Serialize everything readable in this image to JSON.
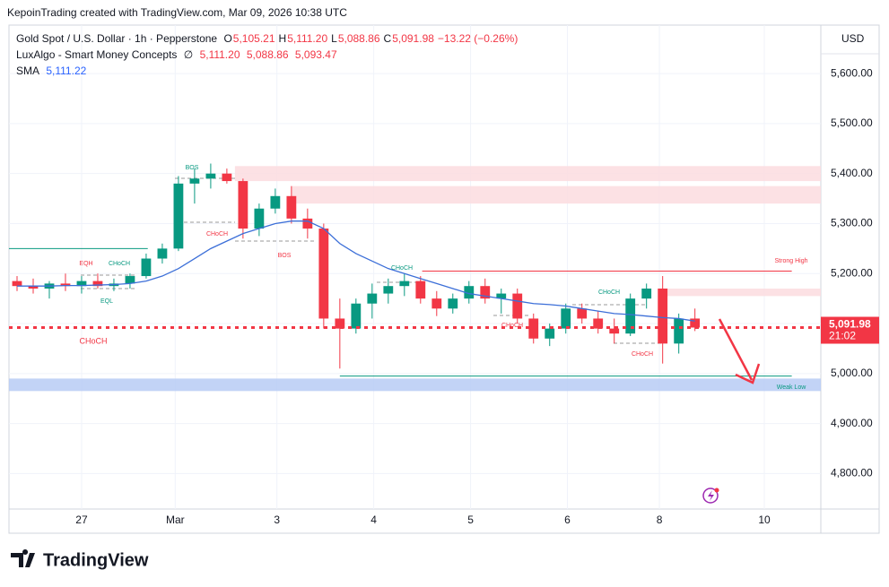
{
  "chart_data": {
    "type": "candlestick",
    "header": "KepoinTrading created with TradingView.com, Mar 09, 2026 10:38 UTC",
    "legend": {
      "symbol": "Gold Spot / U.S. Dollar · 1h · Pepperstone",
      "ohlc": [
        {
          "label": "O",
          "value": "5,105.21"
        },
        {
          "label": "H",
          "value": "5,111.20"
        },
        {
          "label": "L",
          "value": "5,088.86"
        },
        {
          "label": "C",
          "value": "5,091.98"
        }
      ],
      "change": "−13.22 (−0.26%)",
      "indicator": "LuxAlgo - Smart Money Concepts",
      "indicator_symbol": "∅",
      "indicator_values": [
        "5,111.20",
        "5,088.86",
        "5,093.47"
      ],
      "sma_label": "SMA",
      "sma_value": "5,111.22"
    },
    "currency": "USD",
    "last_price": {
      "value": 5091.98,
      "label": "5,091.98",
      "countdown": "21:02"
    },
    "brand": "TradingView",
    "up_color": "#089981",
    "down_color": "#f23645",
    "sma_color": "#3c6fd8",
    "ohlc": {
      "open": [
        5185,
        5175,
        5170,
        5180,
        5175,
        5185,
        5175,
        5180,
        5195,
        5230,
        5250,
        5380,
        5390,
        5400,
        5385,
        5290,
        5330,
        5355,
        5310,
        5290,
        5110,
        5090,
        5140,
        5160,
        5175,
        5185,
        5150,
        5130,
        5150,
        5175,
        5150,
        5160,
        5110,
        5070,
        5090,
        5130,
        5110,
        5090,
        5080,
        5150,
        5170,
        5060,
        5110
      ],
      "high": [
        5195,
        5190,
        5185,
        5200,
        5195,
        5200,
        5190,
        5200,
        5240,
        5260,
        5395,
        5410,
        5420,
        5410,
        5390,
        5340,
        5370,
        5375,
        5330,
        5300,
        5150,
        5150,
        5180,
        5190,
        5200,
        5195,
        5165,
        5160,
        5185,
        5190,
        5170,
        5170,
        5120,
        5100,
        5140,
        5140,
        5125,
        5110,
        5160,
        5180,
        5195,
        5120,
        5130
      ],
      "low": [
        5165,
        5160,
        5150,
        5165,
        5160,
        5170,
        5165,
        5170,
        5190,
        5220,
        5245,
        5340,
        5370,
        5380,
        5270,
        5275,
        5320,
        5300,
        5270,
        5090,
        5010,
        5080,
        5110,
        5140,
        5155,
        5140,
        5115,
        5120,
        5140,
        5140,
        5120,
        5100,
        5060,
        5055,
        5080,
        5100,
        5080,
        5060,
        5075,
        5130,
        5020,
        5040,
        5085
      ],
      "close": [
        5175,
        5170,
        5180,
        5175,
        5185,
        5175,
        5180,
        5195,
        5230,
        5250,
        5380,
        5390,
        5400,
        5385,
        5290,
        5330,
        5355,
        5310,
        5290,
        5110,
        5090,
        5140,
        5160,
        5175,
        5185,
        5150,
        5130,
        5150,
        5175,
        5150,
        5160,
        5110,
        5070,
        5090,
        5130,
        5110,
        5090,
        5080,
        5150,
        5170,
        5060,
        5110,
        5092
      ]
    },
    "sma": [
      5175,
      5175,
      5175,
      5176,
      5176,
      5177,
      5178,
      5180,
      5185,
      5195,
      5210,
      5230,
      5250,
      5265,
      5280,
      5290,
      5300,
      5305,
      5305,
      5290,
      5260,
      5240,
      5225,
      5210,
      5200,
      5190,
      5180,
      5170,
      5160,
      5155,
      5150,
      5145,
      5140,
      5138,
      5135,
      5130,
      5125,
      5120,
      5118,
      5115,
      5112,
      5110,
      5105
    ],
    "zones": [
      {
        "low": 5385,
        "high": 5415,
        "color": "#fcdcdf"
      },
      {
        "low": 5340,
        "high": 5375,
        "color": "#fcdcdf"
      },
      {
        "low": 5155,
        "high": 5170,
        "color": "#fcdcdf"
      },
      {
        "low": 4965,
        "high": 4990,
        "color": "#b7cbf5"
      }
    ],
    "levels": [
      {
        "value": 5205,
        "color": "#f23645"
      },
      {
        "value": 4995,
        "color": "#089981"
      },
      {
        "value": 5250,
        "color": "#089981"
      }
    ],
    "annotations": [
      {
        "text": "BOS",
        "color": "#089981"
      },
      {
        "text": "CHoCH",
        "color": "#f23645"
      },
      {
        "text": "BOS",
        "color": "#f23645"
      },
      {
        "text": "EQH",
        "color": "#f23645"
      },
      {
        "text": "CHoCH",
        "color": "#089981"
      },
      {
        "text": "EQL",
        "color": "#089981"
      },
      {
        "text": "CHoCH",
        "color": "#f23645"
      },
      {
        "text": "CHoCH",
        "color": "#089981"
      },
      {
        "text": "CHoCH",
        "color": "#f23645"
      },
      {
        "text": "CHoCH",
        "color": "#089981"
      },
      {
        "text": "CHoCH",
        "color": "#f23645"
      },
      {
        "text": "Strong High",
        "color": "#f23645"
      },
      {
        "text": "Weak Low",
        "color": "#089981"
      }
    ],
    "ylim": [
      4729,
      5697
    ],
    "yticks": [
      {
        "value": 4800,
        "label": "4,800.00"
      },
      {
        "value": 4900,
        "label": "4,900.00"
      },
      {
        "value": 5000,
        "label": "5,000.00"
      },
      {
        "value": 5100,
        "label": "5,100.00"
      },
      {
        "value": 5200,
        "label": "5,200.00"
      },
      {
        "value": 5300,
        "label": "5,300.00"
      },
      {
        "value": 5400,
        "label": "5,400.00"
      },
      {
        "value": 5500,
        "label": "5,500.00"
      },
      {
        "value": 5600,
        "label": "5,600.00"
      }
    ],
    "xlim": [
      0,
      50.3
    ],
    "xticks": [
      {
        "value": 4.5,
        "label": "27"
      },
      {
        "value": 10.3,
        "label": "Mar"
      },
      {
        "value": 16.6,
        "label": "3"
      },
      {
        "value": 22.6,
        "label": "4"
      },
      {
        "value": 28.6,
        "label": "5"
      },
      {
        "value": 34.6,
        "label": "6"
      },
      {
        "value": 40.3,
        "label": "8"
      },
      {
        "value": 46.8,
        "label": "10"
      }
    ],
    "grid": true
  }
}
